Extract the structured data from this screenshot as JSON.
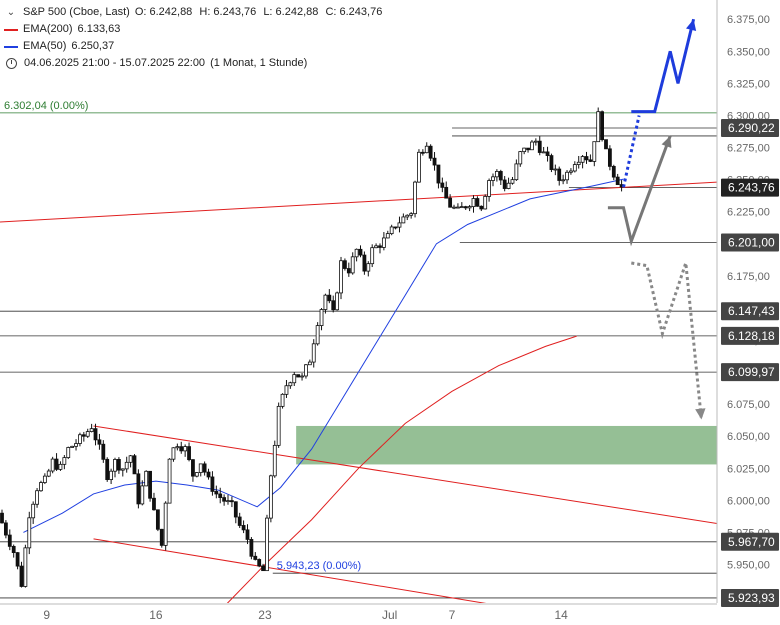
{
  "legend": {
    "instrument": "S&P 500 (Cboe, Last)",
    "ohlc": [
      "O: 6.242,88",
      "H: 6.243,76",
      "L: 6.242,88",
      "C: 6.243,76"
    ],
    "ema200_label": "EMA(200)",
    "ema200_value": "6.133,63",
    "ema200_color": "#e02020",
    "ema50_label": "EMA(50)",
    "ema50_value": "6.250,37",
    "ema50_color": "#2040e0",
    "range": "04.06.2025 21:00 - 15.07.2025 22:00",
    "interval": "(1 Monat, 1 Stunde)"
  },
  "chart_data": {
    "type": "candlestick",
    "y_range": [
      5920,
      6390
    ],
    "y_ticks": [
      6375,
      6350,
      6325,
      6300,
      6275,
      6250,
      6225,
      6200,
      6175,
      6150,
      6125,
      6100,
      6075,
      6050,
      6025,
      6000,
      5975,
      5950
    ],
    "y_tick_labels": [
      "6.375,00",
      "6.350,00",
      "6.325,00",
      "6.300,00",
      "6.275,00",
      "6.250,00",
      "6.225,00",
      "6.200,00",
      "6.175,00",
      "6.150,00",
      "6.125,00",
      "6.100,00",
      "6.075,00",
      "6.050,00",
      "6.025,00",
      "6.000,00",
      "5.975,00",
      "5.950,00"
    ],
    "x_ticks": [
      {
        "label": "9",
        "t": 6
      },
      {
        "label": "16",
        "t": 20
      },
      {
        "label": "23",
        "t": 34
      },
      {
        "label": "Jul",
        "t": 50
      },
      {
        "label": "7",
        "t": 58
      },
      {
        "label": "14",
        "t": 72
      }
    ],
    "t_range": [
      0,
      92
    ],
    "price_path": [
      [
        0,
        5990
      ],
      [
        1,
        5975
      ],
      [
        2,
        5960
      ],
      [
        3,
        5935
      ],
      [
        4,
        5990
      ],
      [
        5,
        6010
      ],
      [
        6,
        6015
      ],
      [
        7,
        6030
      ],
      [
        8,
        6025
      ],
      [
        9,
        6040
      ],
      [
        10,
        6045
      ],
      [
        11,
        6050
      ],
      [
        12,
        6058
      ],
      [
        13,
        6040
      ],
      [
        14,
        6020
      ],
      [
        15,
        6030
      ],
      [
        16,
        6025
      ],
      [
        17,
        6035
      ],
      [
        18,
        6000
      ],
      [
        19,
        6020
      ],
      [
        20,
        5990
      ],
      [
        21,
        5965
      ],
      [
        22,
        6035
      ],
      [
        23,
        6045
      ],
      [
        24,
        6040
      ],
      [
        25,
        6020
      ],
      [
        26,
        6030
      ],
      [
        27,
        6015
      ],
      [
        28,
        6005
      ],
      [
        29,
        6000
      ],
      [
        30,
        5995
      ],
      [
        31,
        5980
      ],
      [
        32,
        5970
      ],
      [
        33,
        5950
      ],
      [
        34,
        5945
      ],
      [
        35,
        6020
      ],
      [
        36,
        6070
      ],
      [
        37,
        6090
      ],
      [
        38,
        6100
      ],
      [
        39,
        6095
      ],
      [
        40,
        6110
      ],
      [
        41,
        6140
      ],
      [
        42,
        6160
      ],
      [
        43,
        6145
      ],
      [
        44,
        6185
      ],
      [
        45,
        6180
      ],
      [
        46,
        6195
      ],
      [
        47,
        6180
      ],
      [
        48,
        6195
      ],
      [
        49,
        6200
      ],
      [
        50,
        6205
      ],
      [
        51,
        6215
      ],
      [
        52,
        6220
      ],
      [
        53,
        6225
      ],
      [
        54,
        6270
      ],
      [
        55,
        6280
      ],
      [
        56,
        6260
      ],
      [
        57,
        6240
      ],
      [
        58,
        6230
      ],
      [
        59,
        6225
      ],
      [
        60,
        6230
      ],
      [
        61,
        6235
      ],
      [
        62,
        6230
      ],
      [
        63,
        6250
      ],
      [
        64,
        6255
      ],
      [
        65,
        6245
      ],
      [
        66,
        6250
      ],
      [
        67,
        6270
      ],
      [
        68,
        6275
      ],
      [
        69,
        6280
      ],
      [
        70,
        6270
      ],
      [
        71,
        6260
      ],
      [
        72,
        6250
      ],
      [
        73,
        6255
      ],
      [
        74,
        6265
      ],
      [
        75,
        6270
      ],
      [
        76,
        6265
      ],
      [
        77,
        6300
      ],
      [
        78,
        6270
      ],
      [
        79,
        6255
      ],
      [
        80,
        6243.76
      ]
    ],
    "ema50": [
      [
        3,
        5975
      ],
      [
        8,
        5990
      ],
      [
        12,
        6005
      ],
      [
        16,
        6012
      ],
      [
        20,
        6015
      ],
      [
        24,
        6012
      ],
      [
        28,
        6008
      ],
      [
        33,
        5995
      ],
      [
        36,
        6010
      ],
      [
        40,
        6040
      ],
      [
        44,
        6080
      ],
      [
        48,
        6120
      ],
      [
        52,
        6160
      ],
      [
        56,
        6200
      ],
      [
        60,
        6215
      ],
      [
        64,
        6225
      ],
      [
        68,
        6235
      ],
      [
        72,
        6240
      ],
      [
        76,
        6245
      ],
      [
        80,
        6250.37
      ]
    ],
    "ema200": [
      [
        26,
        5900
      ],
      [
        30,
        5925
      ],
      [
        34,
        5950
      ],
      [
        40,
        5985
      ],
      [
        46,
        6025
      ],
      [
        52,
        6060
      ],
      [
        58,
        6085
      ],
      [
        64,
        6105
      ],
      [
        70,
        6120
      ],
      [
        74,
        6128
      ]
    ],
    "support_zone": [
      6028,
      6058
    ],
    "horizontal_levels": [
      6302.04,
      6290.22,
      6284.06,
      6243.76,
      6201.0,
      6147.43,
      6128.18,
      6099.97,
      5967.7,
      5943.23,
      5923.93
    ],
    "price_labels": [
      {
        "text": "6.290,22",
        "value": 6290.22,
        "bg": "#444444"
      },
      {
        "text": "6.243,76",
        "value": 6243.76,
        "bg": "#222222"
      },
      {
        "text": "6.201,00",
        "value": 6201.0,
        "bg": "#444444"
      },
      {
        "text": "6.147,43",
        "value": 6147.43,
        "bg": "#444444"
      },
      {
        "text": "6.128,18",
        "value": 6128.18,
        "bg": "#444444"
      },
      {
        "text": "6.099,97",
        "value": 6099.97,
        "bg": "#444444"
      },
      {
        "text": "5.967,70",
        "value": 5967.7,
        "bg": "#444444"
      },
      {
        "text": "5.923,93",
        "value": 5923.93,
        "bg": "#444444"
      }
    ],
    "annotations": [
      {
        "text": "6.302,04 (0.00%)",
        "value": 6302.04,
        "t": 0,
        "color": "#2e7d32"
      },
      {
        "text": "5.943,23 (0.00%)",
        "value": 5943.23,
        "t": 35,
        "color": "#2040e0"
      }
    ],
    "trend_lines": [
      {
        "from": [
          0,
          6217
        ],
        "to": [
          92,
          6248
        ],
        "color": "#e02020"
      },
      {
        "from": [
          12,
          6058
        ],
        "to": [
          92,
          5982
        ],
        "color": "#e02020"
      },
      {
        "from": [
          12,
          5970
        ],
        "to": [
          92,
          5890
        ],
        "color": "#e02020"
      }
    ],
    "scenarios": [
      {
        "style": "solid",
        "color": "#1e3cdc",
        "points": [
          [
            81,
            6303
          ],
          [
            84,
            6303
          ],
          [
            86,
            6350
          ],
          [
            87,
            6325
          ],
          [
            89,
            6375
          ]
        ]
      },
      {
        "style": "dotted",
        "color": "#1e3cdc",
        "points": [
          [
            80,
            6244
          ],
          [
            82,
            6300
          ]
        ]
      },
      {
        "style": "solid",
        "color": "#777777",
        "points": [
          [
            78,
            6228
          ],
          [
            80,
            6228
          ],
          [
            81,
            6202
          ],
          [
            86,
            6284
          ]
        ]
      },
      {
        "style": "dotted",
        "color": "#888888",
        "points": [
          [
            81,
            6185
          ],
          [
            83,
            6183
          ],
          [
            85,
            6130
          ],
          [
            88,
            6185
          ],
          [
            90,
            6063
          ]
        ]
      }
    ]
  }
}
